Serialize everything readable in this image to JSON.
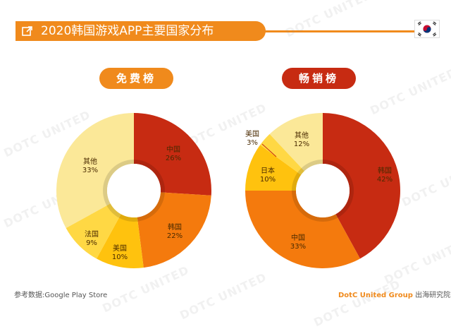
{
  "title": "2020韩国游戏APP主要国家分布",
  "flag_icon": "korea-flag-icon",
  "watermark": "DOTC UNITED",
  "colors": {
    "orange": "#f08a1c",
    "red": "#c72b12"
  },
  "chart_data": [
    {
      "type": "pie",
      "title": "免费榜",
      "labels": [
        "中国",
        "韩国",
        "美国",
        "法国",
        "其他"
      ],
      "values": [
        26,
        22,
        10,
        9,
        33
      ],
      "value_labels": [
        "26%",
        "22%",
        "10%",
        "9%",
        "33%"
      ],
      "colors": [
        "#c72b12",
        "#f47a0d",
        "#ffc20e",
        "#ffd844",
        "#fbe898"
      ]
    },
    {
      "type": "pie",
      "title": "畅销榜",
      "labels": [
        "韩国",
        "中国",
        "日本",
        "美国",
        "其他"
      ],
      "values": [
        42,
        33,
        10,
        3,
        12
      ],
      "value_labels": [
        "42%",
        "33%",
        "10%",
        "3%",
        "12%"
      ],
      "colors": [
        "#c72b12",
        "#f47a0d",
        "#ffc20e",
        "#ffd844",
        "#fbe898"
      ]
    }
  ],
  "footer": {
    "source": "参考数据:Google Play Store",
    "brand": "DotC United Group",
    "org": "出海研究院"
  }
}
